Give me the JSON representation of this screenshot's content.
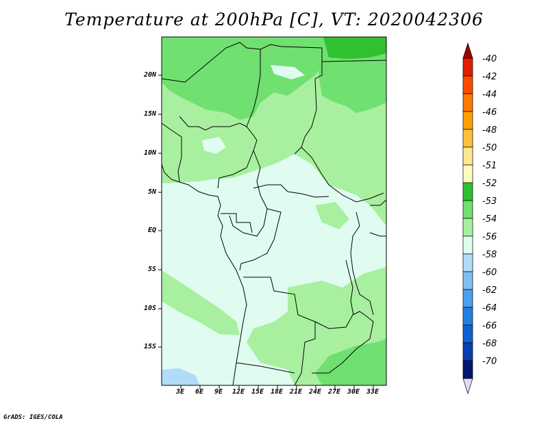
{
  "title": "Temperature at 200hPa [C], VT: 2020042306",
  "credit": "GrADS: IGES/COLA",
  "y_axis_labels": [
    "20N",
    "15N",
    "10N",
    "5N",
    "EQ",
    "5S",
    "10S",
    "15S"
  ],
  "x_axis_labels": [
    "3E",
    "6E",
    "9E",
    "12E",
    "15E",
    "18E",
    "21E",
    "24E",
    "27E",
    "30E",
    "33E"
  ],
  "colorbar": {
    "levels": [
      "-40",
      "-42",
      "-44",
      "-46",
      "-48",
      "-50",
      "-51",
      "-52",
      "-53",
      "-54",
      "-56",
      "-58",
      "-60",
      "-62",
      "-64",
      "-66",
      "-68",
      "-70"
    ],
    "colors": [
      "#a00000",
      "#e01e00",
      "#ff4a00",
      "#ff7a00",
      "#ffa000",
      "#ffc040",
      "#ffe890",
      "#fffcc0",
      "#30c030",
      "#70e070",
      "#a8f0a0",
      "#e0fcf0",
      "#b0dcf8",
      "#80c0f0",
      "#4ca0ec",
      "#2080e0",
      "#1060d0",
      "#0840b0",
      "#001870",
      "#e0dcf8"
    ]
  },
  "field_colors": {
    "very_pale": "#e0fcf0",
    "pale_green": "#a8f0a0",
    "mid_green": "#70e070",
    "green": "#30c030",
    "light_blue": "#b0dcf8"
  }
}
